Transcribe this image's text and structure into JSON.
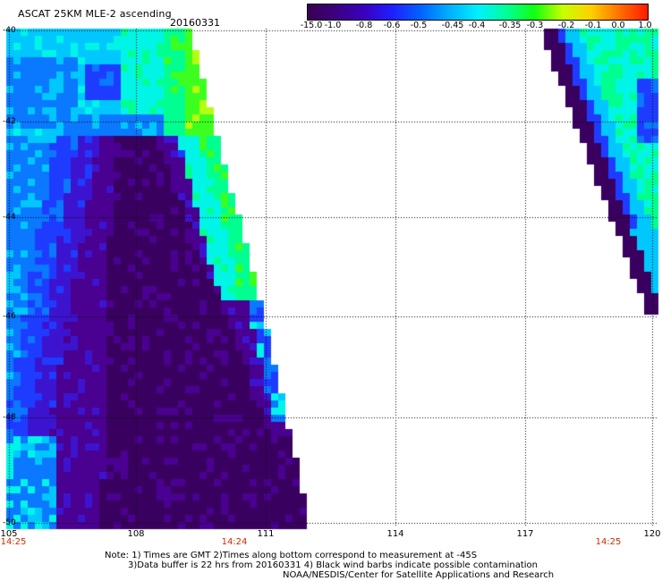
{
  "header": {
    "title": "ASCAT 25KM MLE-2 ascending",
    "date": "20160331"
  },
  "colorbar": {
    "labels": [
      "-15.0",
      "-1.0",
      "-0.8",
      "-0.6",
      "-0.5",
      "-0.45",
      "-0.4",
      "-0.35",
      "-0.3",
      "-0.2",
      "-0.1",
      "0.0",
      "1.0"
    ],
    "colors": [
      "#3a0050",
      "#3c0080",
      "#3a00c0",
      "#1f1fff",
      "#0064ff",
      "#00b0ff",
      "#00f0ff",
      "#00ff9a",
      "#10ff10",
      "#c8ff00",
      "#ffd000",
      "#ff7000",
      "#ff1a00"
    ]
  },
  "map": {
    "x_axis": {
      "labels": [
        "105",
        "108",
        "111",
        "114",
        "117",
        "120"
      ],
      "range": [
        105,
        120
      ]
    },
    "y_axis": {
      "labels": [
        "-40",
        "-42",
        "-44",
        "-46",
        "-48",
        "-50"
      ],
      "range": [
        -40,
        -50
      ]
    },
    "pass_times": [
      "14:25",
      "14:24",
      "14:25"
    ]
  },
  "footer": {
    "line1": "Note: 1) Times are GMT 2)Times along bottom correspond to measurement at -45S",
    "line2": "3)Data buffer is 22 hrs from 20160331 4) Black wind barbs indicate possible contamination",
    "line3": "NOAA/NESDIS/Center for Satellite Applications and Research"
  }
}
